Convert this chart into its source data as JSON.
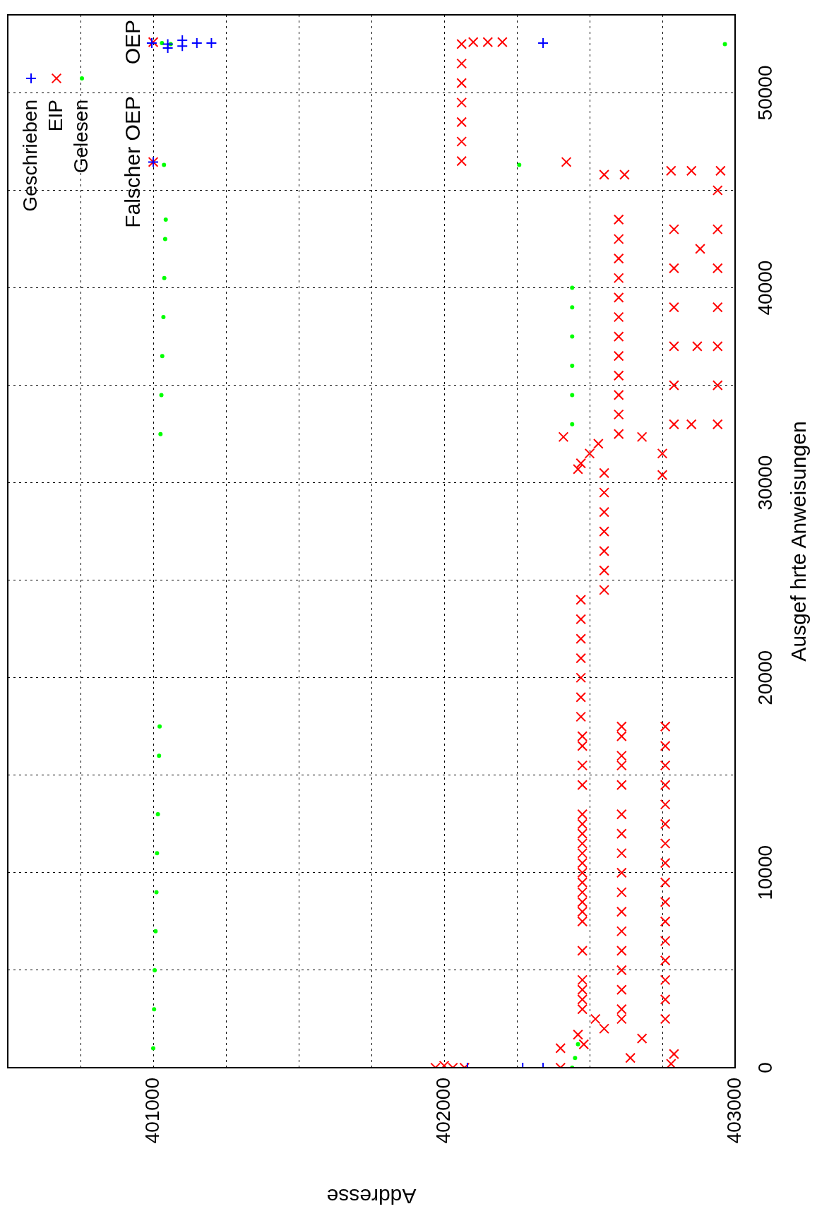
{
  "chart_data": {
    "type": "scatter",
    "xlabel": "Addresse",
    "ylabel": "Ausgef hrte Anweisungen",
    "ylim": [
      0,
      54000
    ],
    "yticks": [
      0,
      {
        "value": 5000,
        "label": null
      },
      10000,
      {
        "value": 15000,
        "label": null
      },
      20000,
      {
        "value": 25000,
        "label": null
      },
      30000,
      {
        "value": 35000,
        "label": null
      },
      40000,
      {
        "value": 45000,
        "label": null
      },
      50000
    ],
    "xlim": [
      400500,
      403000
    ],
    "xticks": [
      {
        "value": 400750,
        "label": null
      },
      401000,
      {
        "value": 401250,
        "label": null
      },
      {
        "value": 401500,
        "label": null
      },
      {
        "value": 401750,
        "label": null
      },
      402000,
      {
        "value": 402250,
        "label": null
      },
      {
        "value": 402500,
        "label": null
      },
      {
        "value": 402750,
        "label": null
      },
      403000
    ],
    "grid": true,
    "legend": "top left",
    "annotations": [
      {
        "text": "Falscher OEP",
        "y": 46450,
        "x": 401000
      },
      {
        "text": "OEP",
        "y": 52600,
        "x": 401000
      }
    ],
    "series": [
      {
        "name": "Geschrieben",
        "color": "#0000ff",
        "marker": "cross",
        "values": [
          46450,
          52550,
          52300,
          52500,
          52700,
          52400,
          52550,
          52550,
          52550,
          0,
          0,
          0
        ],
        "x": [
          401000,
          400995,
          401050,
          401050,
          401100,
          401100,
          401150,
          401200,
          402340,
          402080,
          402270,
          402340
        ]
      },
      {
        "name": "EIP",
        "color": "#ff0000",
        "marker": "x",
        "values": [
          0,
          0,
          0,
          100,
          0,
          1000,
          1200,
          1700,
          2000,
          2500,
          500,
          1500,
          200,
          700,
          3000,
          3500,
          4000,
          4500,
          6000,
          7500,
          8000,
          8500,
          9000,
          9500,
          10000,
          10500,
          11000,
          11500,
          12000,
          12500,
          13000,
          14500,
          15500,
          16500,
          17000,
          2500,
          3000,
          4000,
          5000,
          6000,
          7000,
          8000,
          9000,
          10000,
          11000,
          12000,
          13000,
          14500,
          15500,
          16000,
          17000,
          17500,
          2500,
          3500,
          4500,
          5500,
          6500,
          7500,
          8500,
          9500,
          10500,
          11500,
          12500,
          13500,
          14500,
          15500,
          16500,
          17500,
          18000,
          19000,
          20000,
          21000,
          22000,
          23000,
          24000,
          24500,
          25500,
          26500,
          27500,
          28500,
          29500,
          30500,
          30700,
          31000,
          31500,
          32000,
          32500,
          33500,
          34500,
          35500,
          36500,
          37500,
          38500,
          39500,
          40500,
          41500,
          42500,
          43500,
          45800,
          45800,
          33000,
          35000,
          37000,
          39000,
          41000,
          43000,
          33000,
          35000,
          37000,
          39000,
          41000,
          43000,
          45000,
          46000,
          33000,
          46000,
          46000,
          42000,
          37000,
          32350,
          32350,
          31500,
          30400,
          46450,
          46450,
          52600,
          46500,
          47500,
          48500,
          49500,
          50500,
          51500,
          52500,
          52600,
          52600,
          52600
        ],
        "x": [
          401970,
          402030,
          402070,
          402000,
          402400,
          402400,
          402480,
          402460,
          402550,
          402520,
          402640,
          402680,
          402780,
          402790,
          402475,
          402475,
          402475,
          402475,
          402475,
          402475,
          402475,
          402475,
          402475,
          402475,
          402475,
          402475,
          402475,
          402475,
          402475,
          402475,
          402475,
          402475,
          402475,
          402475,
          402475,
          402610,
          402610,
          402610,
          402610,
          402610,
          402610,
          402610,
          402610,
          402610,
          402610,
          402610,
          402610,
          402610,
          402610,
          402610,
          402610,
          402610,
          402760,
          402760,
          402760,
          402760,
          402760,
          402760,
          402760,
          402760,
          402760,
          402760,
          402760,
          402760,
          402760,
          402760,
          402760,
          402760,
          402470,
          402470,
          402470,
          402470,
          402470,
          402470,
          402470,
          402550,
          402550,
          402550,
          402550,
          402550,
          402550,
          402550,
          402460,
          402470,
          402500,
          402530,
          402600,
          402600,
          402600,
          402600,
          402600,
          402600,
          402600,
          402600,
          402600,
          402600,
          402600,
          402600,
          402550,
          402620,
          402790,
          402790,
          402790,
          402790,
          402790,
          402790,
          402940,
          402940,
          402940,
          402940,
          402940,
          402940,
          402940,
          402950,
          402850,
          402850,
          402780,
          402880,
          402870,
          402410,
          402680,
          402750,
          402750,
          402420,
          401000,
          401000,
          402060,
          402060,
          402060,
          402060,
          402060,
          402060,
          402060,
          402100,
          402150,
          402200
        ]
      },
      {
        "name": "Gelesen",
        "color": "#00ff00",
        "marker": "circle",
        "values": [
          1000,
          3000,
          5000,
          7000,
          9000,
          11000,
          13000,
          16000,
          17500,
          32500,
          34500,
          36500,
          38500,
          40500,
          42500,
          43500,
          33000,
          34500,
          36000,
          37500,
          39000,
          40000,
          0,
          500,
          1200,
          52550,
          52500,
          46300,
          52500,
          46300
        ],
        "x": [
          401000,
          401003,
          401005,
          401008,
          401011,
          401013,
          401016,
          401020,
          401022,
          401025,
          401028,
          401031,
          401035,
          401038,
          401041,
          401043,
          402440,
          402440,
          402440,
          402440,
          402440,
          402440,
          402440,
          402450,
          402460,
          401030,
          401060,
          401037,
          402965,
          402258
        ]
      }
    ]
  }
}
